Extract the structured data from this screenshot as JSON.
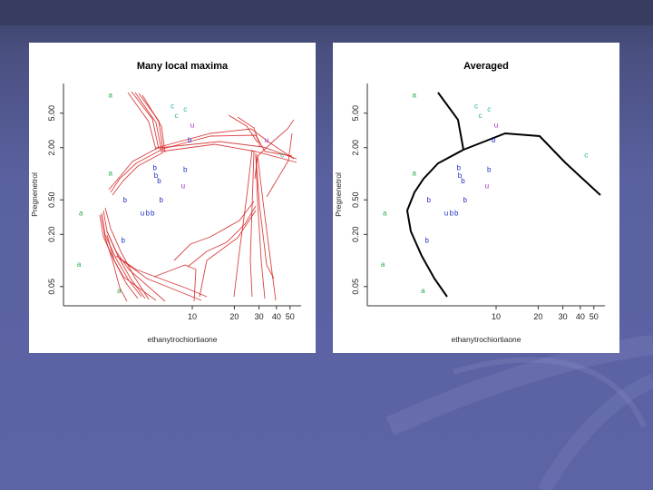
{
  "background": {
    "slide": "#5d64a6",
    "panel": "#ffffff"
  },
  "chart_data": [
    {
      "type": "scatter",
      "title": "Many local maxima",
      "xlabel": "ethanytrochiortiaone",
      "ylabel": "Pregnenetrol",
      "x_scale": "log",
      "y_scale": "log",
      "x_ticks": [
        "10",
        "20",
        "30",
        "40",
        "50"
      ],
      "y_ticks": [
        "0.05",
        "0.20",
        "0.50",
        "2.00",
        "5.00"
      ],
      "line_color": "#d42020",
      "points": [
        {
          "label": "a",
          "x": 2.6,
          "y": 7.6,
          "color": "#22a84a"
        },
        {
          "label": "c",
          "x": 7.2,
          "y": 5.7,
          "color": "#1fb5a6"
        },
        {
          "label": "c",
          "x": 8.9,
          "y": 5.2,
          "color": "#1fb5a6"
        },
        {
          "label": "c",
          "x": 7.7,
          "y": 4.4,
          "color": "#1fb5a6"
        },
        {
          "label": "u",
          "x": 10.0,
          "y": 3.4,
          "color": "#9b2ac0"
        },
        {
          "label": "b",
          "x": 9.6,
          "y": 2.3,
          "color": "#1f2fc0"
        },
        {
          "label": "u",
          "x": 34.0,
          "y": 2.3,
          "color": "#9b2ac0"
        },
        {
          "label": "c",
          "x": 44.0,
          "y": 1.55,
          "color": "#1fb5a6"
        },
        {
          "label": "a",
          "x": 2.6,
          "y": 0.95,
          "color": "#22a84a"
        },
        {
          "label": "b",
          "x": 5.4,
          "y": 1.1,
          "color": "#1f2fc0"
        },
        {
          "label": "b",
          "x": 8.9,
          "y": 1.05,
          "color": "#1f2fc0"
        },
        {
          "label": "b",
          "x": 5.5,
          "y": 0.9,
          "color": "#1f2fc0"
        },
        {
          "label": "b",
          "x": 5.8,
          "y": 0.78,
          "color": "#1f2fc0"
        },
        {
          "label": "u",
          "x": 8.6,
          "y": 0.68,
          "color": "#9b2ac0"
        },
        {
          "label": "b",
          "x": 3.3,
          "y": 0.47,
          "color": "#1f2fc0"
        },
        {
          "label": "b",
          "x": 6.0,
          "y": 0.47,
          "color": "#1f2fc0"
        },
        {
          "label": "a",
          "x": 1.6,
          "y": 0.33,
          "color": "#22a84a"
        },
        {
          "label": "u",
          "x": 4.4,
          "y": 0.33,
          "color": "#1f2fc0"
        },
        {
          "label": "b",
          "x": 4.8,
          "y": 0.33,
          "color": "#1f2fc0"
        },
        {
          "label": "b",
          "x": 5.2,
          "y": 0.33,
          "color": "#1f2fc0"
        },
        {
          "label": "b",
          "x": 3.2,
          "y": 0.16,
          "color": "#1f2fc0"
        },
        {
          "label": "a",
          "x": 1.55,
          "y": 0.085,
          "color": "#22a84a"
        },
        {
          "label": "a",
          "x": 3.0,
          "y": 0.042,
          "color": "#22a84a"
        }
      ]
    },
    {
      "type": "scatter",
      "title": "Averaged",
      "xlabel": "ethanytrochiortiaone",
      "ylabel": "Pregnenetrol",
      "x_scale": "log",
      "y_scale": "log",
      "x_ticks": [
        "10",
        "20",
        "30",
        "40",
        "50"
      ],
      "y_ticks": [
        "0.05",
        "0.20",
        "0.50",
        "2.00",
        "5.00"
      ],
      "line_color": "#000000",
      "points": [
        {
          "label": "a",
          "x": 2.6,
          "y": 7.6,
          "color": "#22a84a"
        },
        {
          "label": "c",
          "x": 7.2,
          "y": 5.7,
          "color": "#1fb5a6"
        },
        {
          "label": "c",
          "x": 8.9,
          "y": 5.2,
          "color": "#1fb5a6"
        },
        {
          "label": "c",
          "x": 7.7,
          "y": 4.4,
          "color": "#1fb5a6"
        },
        {
          "label": "u",
          "x": 10.0,
          "y": 3.4,
          "color": "#9b2ac0"
        },
        {
          "label": "b",
          "x": 9.6,
          "y": 2.3,
          "color": "#1f2fc0"
        },
        {
          "label": "c",
          "x": 44.0,
          "y": 1.55,
          "color": "#1fb5a6"
        },
        {
          "label": "a",
          "x": 2.6,
          "y": 0.95,
          "color": "#22a84a"
        },
        {
          "label": "b",
          "x": 5.4,
          "y": 1.1,
          "color": "#1f2fc0"
        },
        {
          "label": "b",
          "x": 8.9,
          "y": 1.05,
          "color": "#1f2fc0"
        },
        {
          "label": "b",
          "x": 5.5,
          "y": 0.9,
          "color": "#1f2fc0"
        },
        {
          "label": "b",
          "x": 5.8,
          "y": 0.78,
          "color": "#1f2fc0"
        },
        {
          "label": "u",
          "x": 8.6,
          "y": 0.68,
          "color": "#9b2ac0"
        },
        {
          "label": "b",
          "x": 3.3,
          "y": 0.47,
          "color": "#1f2fc0"
        },
        {
          "label": "b",
          "x": 6.0,
          "y": 0.47,
          "color": "#1f2fc0"
        },
        {
          "label": "a",
          "x": 1.6,
          "y": 0.33,
          "color": "#22a84a"
        },
        {
          "label": "u",
          "x": 4.4,
          "y": 0.33,
          "color": "#1f2fc0"
        },
        {
          "label": "b",
          "x": 4.8,
          "y": 0.33,
          "color": "#1f2fc0"
        },
        {
          "label": "b",
          "x": 5.2,
          "y": 0.33,
          "color": "#1f2fc0"
        },
        {
          "label": "b",
          "x": 3.2,
          "y": 0.16,
          "color": "#1f2fc0"
        },
        {
          "label": "a",
          "x": 1.55,
          "y": 0.085,
          "color": "#22a84a"
        },
        {
          "label": "a",
          "x": 3.0,
          "y": 0.042,
          "color": "#22a84a"
        }
      ]
    }
  ]
}
